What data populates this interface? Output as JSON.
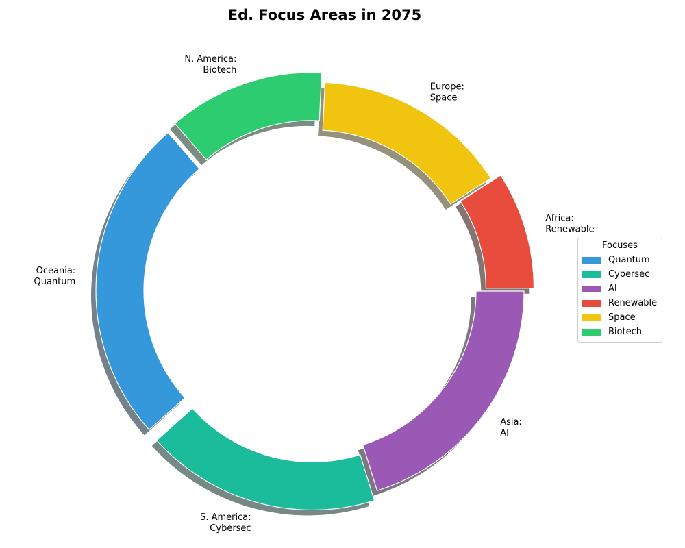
{
  "colors": {
    "quantum": "#3498db",
    "cybersec": "#1abc9c",
    "ai": "#9b59b6",
    "renewable": "#e74c3c",
    "space": "#f1c40f",
    "biotech": "#2ecc71"
  },
  "chart_data": {
    "type": "pie",
    "variant": "donut",
    "title": "Ed. Focus Areas in 2075",
    "legend_title": "Focuses",
    "legend_placement": "right",
    "shadow": true,
    "start_angle_deg": 0,
    "direction": "counterclockwise",
    "slices": [
      {
        "label": "Africa:\nRenewable",
        "focus": "Renewable",
        "value": 9,
        "color": "#e74c3c",
        "exploded": true
      },
      {
        "label": "Europe:\nSpace",
        "focus": "Space",
        "value": 15,
        "color": "#f1c40f",
        "exploded": false
      },
      {
        "label": "N. America:\nBiotech",
        "focus": "Biotech",
        "value": 12,
        "color": "#2ecc71",
        "exploded": true
      },
      {
        "label": "Oceania:\nQuantum",
        "focus": "Quantum",
        "value": 25,
        "color": "#3498db",
        "exploded": true
      },
      {
        "label": "S. America:\nCybersec",
        "focus": "Cybersec",
        "value": 18,
        "color": "#1abc9c",
        "exploded": true
      },
      {
        "label": "Asia:\nAI",
        "focus": "AI",
        "value": 20,
        "color": "#9b59b6",
        "exploded": false
      }
    ],
    "legend": [
      {
        "name": "Quantum",
        "color": "#3498db"
      },
      {
        "name": "Cybersec",
        "color": "#1abc9c"
      },
      {
        "name": "AI",
        "color": "#9b59b6"
      },
      {
        "name": "Renewable",
        "color": "#e74c3c"
      },
      {
        "name": "Space",
        "color": "#f1c40f"
      },
      {
        "name": "Biotech",
        "color": "#2ecc71"
      }
    ]
  }
}
